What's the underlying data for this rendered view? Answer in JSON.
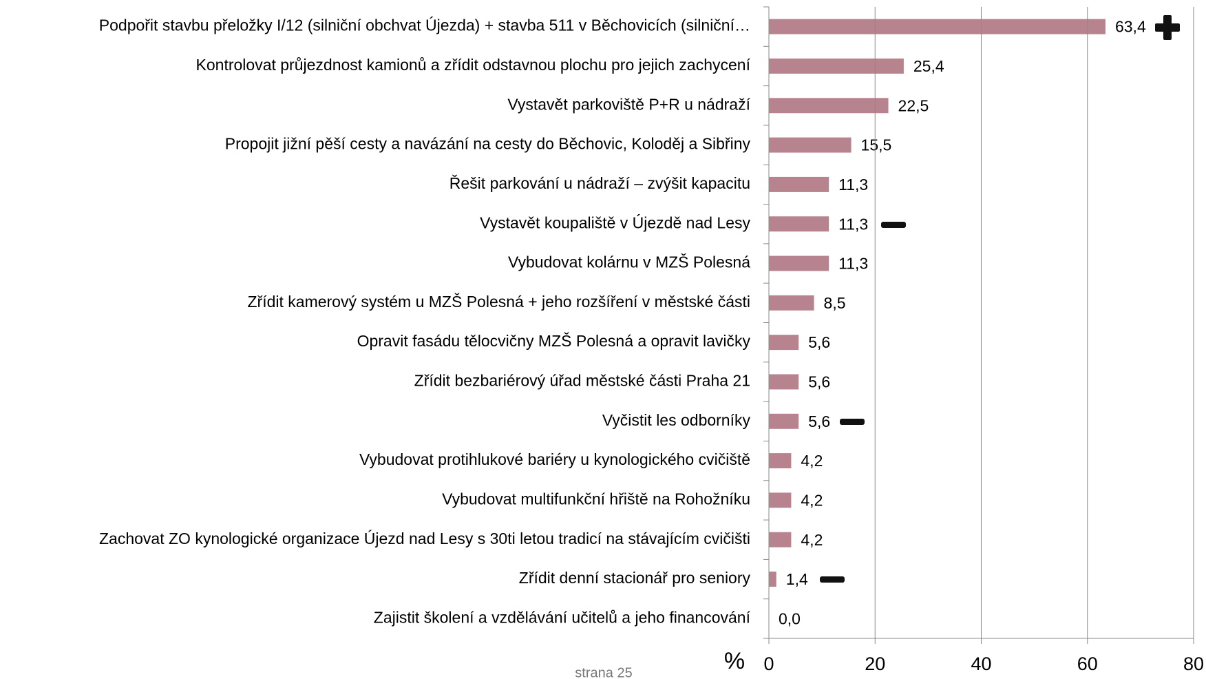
{
  "chart_data": {
    "type": "hbar",
    "categories": [
      "Podpořit stavbu přeložky I/12 (silniční obchvat Újezda) + stavba 511  v Běchovicích (silniční…",
      "Kontrolovat průjezdnost kamionů a zřídit odstavnou plochu pro jejich zachycení",
      "Vystavět parkoviště P+R u nádraží",
      "Propojit jižní pěší cesty a navázání na cesty do Běchovic, Koloděj a Sibřiny",
      "Řešit parkování u nádraží – zvýšit kapacitu",
      "Vystavět koupaliště v Újezdě nad Lesy",
      "Vybudovat kolárnu v MZŠ Polesná",
      "Zřídit kamerový systém u MZŠ Polesná + jeho rozšíření v městské části",
      "Opravit fasádu tělocvičny MZŠ Polesná a opravit lavičky",
      "Zřídit bezbariérový úřad městské části Praha 21",
      "Vyčistit les odborníky",
      "Vybudovat protihlukové bariéry u kynologického cvičiště",
      "Vybudovat multifunkční hřiště na Rohožníku",
      "Zachovat ZO kynologické organizace Újezd nad Lesy s 30ti letou tradicí na stávajícím cvičišti",
      "Zřídit denní stacionář pro seniory",
      "Zajistit školení a vzdělávání učitelů a jeho  financování"
    ],
    "values": [
      63.4,
      25.4,
      22.5,
      15.5,
      11.3,
      11.3,
      11.3,
      8.5,
      5.6,
      5.6,
      5.6,
      4.2,
      4.2,
      4.2,
      1.4,
      0.0
    ],
    "value_labels": [
      "63,4",
      "25,4",
      "22,5",
      "15,5",
      "11,3",
      "11,3",
      "11,3",
      "8,5",
      "5,6",
      "5,6",
      "5,6",
      "4,2",
      "4,2",
      "4,2",
      "1,4",
      "0,0"
    ],
    "color": "#b7838f",
    "xlabel": "%",
    "xlim": [
      0,
      80
    ],
    "xticks": [
      0,
      20,
      40,
      60,
      80
    ],
    "grid": true
  },
  "footer": "strana 25"
}
